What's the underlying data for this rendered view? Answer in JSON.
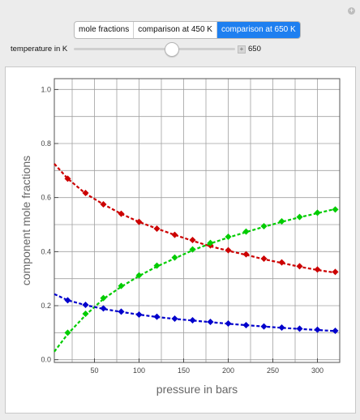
{
  "window": {
    "corner_icon": "plus-icon"
  },
  "tabs": [
    {
      "label": "mole fractions",
      "active": false
    },
    {
      "label": "comparison at 450 K",
      "active": false
    },
    {
      "label": "comparison at 650 K",
      "active": true
    }
  ],
  "temperature_control": {
    "label": "temperature in K",
    "value": "650",
    "min": 450,
    "max": 850,
    "current": 650
  },
  "chart_data": {
    "type": "line",
    "xlabel": "pressure in bars",
    "ylabel": "component mole fractions",
    "xlim": [
      5,
      325
    ],
    "ylim": [
      -0.01,
      1.04
    ],
    "xticks": [
      50,
      100,
      150,
      200,
      250,
      300
    ],
    "yticks": [
      "0.0",
      "0.2",
      "0.4",
      "0.6",
      "0.8",
      "1.0"
    ],
    "grid": true,
    "series": [
      {
        "color": "#cc0000",
        "curve": [
          [
            5,
            0.725
          ],
          [
            20,
            0.67
          ],
          [
            40,
            0.615
          ],
          [
            60,
            0.575
          ],
          [
            80,
            0.54
          ],
          [
            100,
            0.51
          ],
          [
            120,
            0.485
          ],
          [
            140,
            0.462
          ],
          [
            160,
            0.44
          ],
          [
            180,
            0.42
          ],
          [
            200,
            0.403
          ],
          [
            220,
            0.388
          ],
          [
            240,
            0.372
          ],
          [
            260,
            0.358
          ],
          [
            280,
            0.344
          ],
          [
            300,
            0.332
          ],
          [
            320,
            0.322
          ]
        ],
        "points": [
          [
            20,
            0.67
          ],
          [
            40,
            0.617
          ],
          [
            60,
            0.575
          ],
          [
            80,
            0.54
          ],
          [
            100,
            0.51
          ],
          [
            120,
            0.485
          ],
          [
            140,
            0.462
          ],
          [
            160,
            0.443
          ],
          [
            180,
            0.423
          ],
          [
            200,
            0.405
          ],
          [
            220,
            0.39
          ],
          [
            240,
            0.374
          ],
          [
            260,
            0.36
          ],
          [
            280,
            0.346
          ],
          [
            300,
            0.334
          ],
          [
            320,
            0.325
          ]
        ]
      },
      {
        "color": "#00cc00",
        "curve": [
          [
            5,
            0.03
          ],
          [
            20,
            0.095
          ],
          [
            40,
            0.165
          ],
          [
            60,
            0.225
          ],
          [
            80,
            0.27
          ],
          [
            100,
            0.31
          ],
          [
            120,
            0.345
          ],
          [
            140,
            0.375
          ],
          [
            160,
            0.405
          ],
          [
            180,
            0.43
          ],
          [
            200,
            0.452
          ],
          [
            220,
            0.472
          ],
          [
            240,
            0.492
          ],
          [
            260,
            0.51
          ],
          [
            280,
            0.527
          ],
          [
            300,
            0.542
          ],
          [
            320,
            0.558
          ]
        ],
        "points": [
          [
            20,
            0.1
          ],
          [
            40,
            0.17
          ],
          [
            60,
            0.228
          ],
          [
            80,
            0.273
          ],
          [
            100,
            0.312
          ],
          [
            120,
            0.348
          ],
          [
            140,
            0.378
          ],
          [
            160,
            0.408
          ],
          [
            180,
            0.432
          ],
          [
            200,
            0.455
          ],
          [
            220,
            0.474
          ],
          [
            240,
            0.494
          ],
          [
            260,
            0.512
          ],
          [
            280,
            0.528
          ],
          [
            300,
            0.544
          ],
          [
            320,
            0.556
          ]
        ]
      },
      {
        "color": "#0000cc",
        "curve": [
          [
            5,
            0.243
          ],
          [
            20,
            0.22
          ],
          [
            40,
            0.202
          ],
          [
            60,
            0.188
          ],
          [
            80,
            0.177
          ],
          [
            100,
            0.167
          ],
          [
            120,
            0.158
          ],
          [
            140,
            0.151
          ],
          [
            160,
            0.145
          ],
          [
            180,
            0.139
          ],
          [
            200,
            0.133
          ],
          [
            220,
            0.128
          ],
          [
            240,
            0.123
          ],
          [
            260,
            0.118
          ],
          [
            280,
            0.114
          ],
          [
            300,
            0.11
          ],
          [
            320,
            0.106
          ]
        ],
        "points": [
          [
            20,
            0.22
          ],
          [
            40,
            0.203
          ],
          [
            60,
            0.19
          ],
          [
            80,
            0.178
          ],
          [
            100,
            0.167
          ],
          [
            120,
            0.159
          ],
          [
            140,
            0.152
          ],
          [
            160,
            0.146
          ],
          [
            180,
            0.14
          ],
          [
            200,
            0.134
          ],
          [
            220,
            0.128
          ],
          [
            240,
            0.123
          ],
          [
            260,
            0.119
          ],
          [
            280,
            0.115
          ],
          [
            300,
            0.111
          ],
          [
            320,
            0.107
          ]
        ]
      }
    ]
  }
}
